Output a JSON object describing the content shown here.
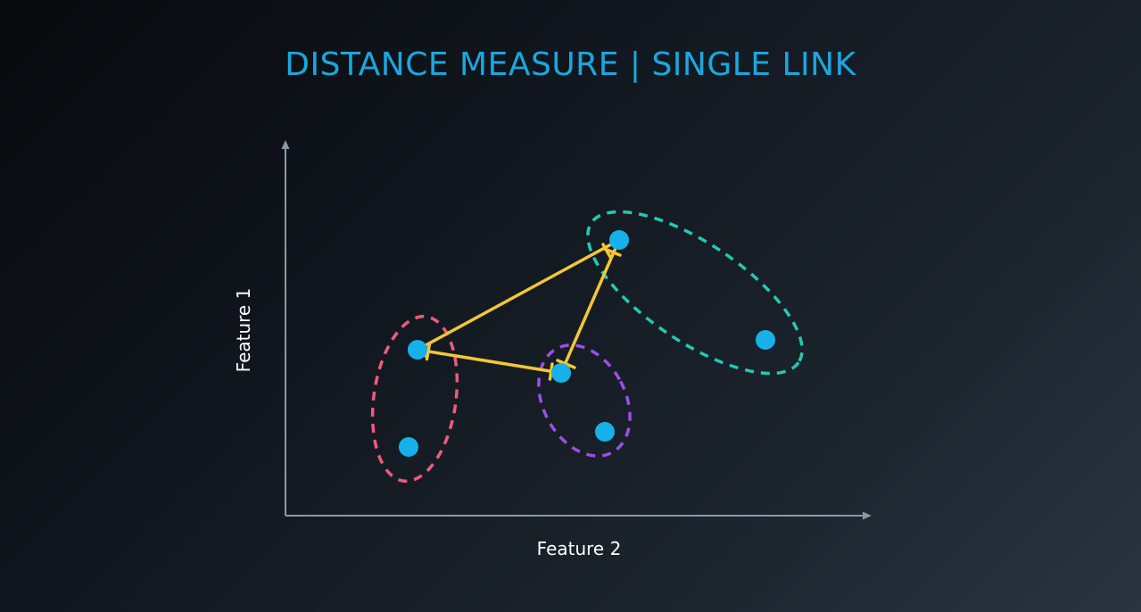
{
  "title": "DISTANCE MEASURE | SINGLE LINK",
  "axes": {
    "x_label": "Feature 2",
    "y_label": "Feature 1"
  },
  "colors": {
    "title": "#1aa7df",
    "point": "#16b1ea",
    "link": "#f2c832",
    "axis": "#8c98a6",
    "cluster_red": "#f05a7a",
    "cluster_purple": "#9b4fe6",
    "cluster_teal": "#23c9b4"
  },
  "clusters": [
    {
      "name": "red-cluster",
      "color": "#f05a7a"
    },
    {
      "name": "purple-cluster",
      "color": "#9b4fe6"
    },
    {
      "name": "teal-cluster",
      "color": "#23c9b4"
    }
  ],
  "links": [
    {
      "from": "red-cluster",
      "to": "purple-cluster"
    },
    {
      "from": "red-cluster",
      "to": "teal-cluster"
    },
    {
      "from": "purple-cluster",
      "to": "teal-cluster"
    }
  ]
}
